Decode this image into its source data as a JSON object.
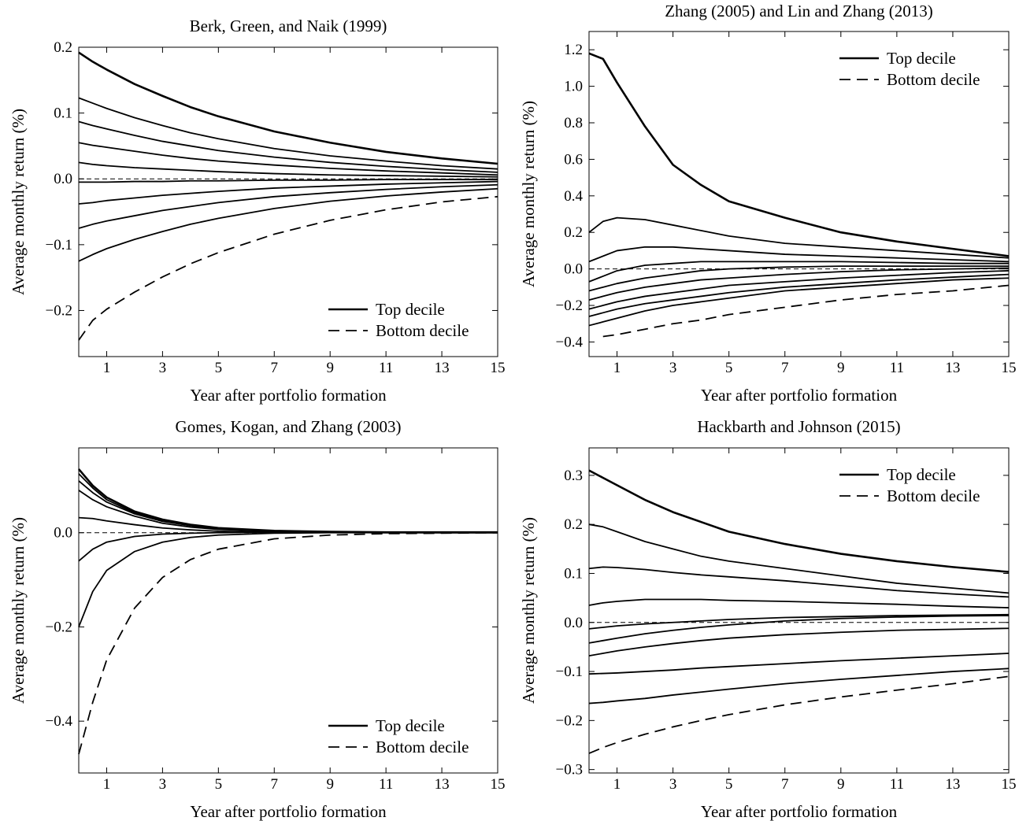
{
  "chart_data": [
    {
      "type": "line",
      "title": "Berk, Green, and Naik (1999)",
      "xlabel": "Year after portfolio formation",
      "ylabel": "Average monthly return (%)",
      "x": [
        0,
        0.5,
        1,
        2,
        3,
        4,
        5,
        7,
        9,
        11,
        13,
        15
      ],
      "xlim": [
        0,
        15
      ],
      "xticks": [
        1,
        3,
        5,
        7,
        9,
        11,
        13,
        15
      ],
      "ylim": [
        -0.27,
        0.2
      ],
      "yticks": [
        {
          "value": -0.2,
          "label": "−0.2"
        },
        {
          "value": -0.1,
          "label": "−0.1"
        },
        {
          "value": 0,
          "label": "0.0"
        },
        0.1,
        0.2
      ],
      "hline": 0,
      "legend": "lower right",
      "series": [
        {
          "name": "Top decile",
          "color": "#000",
          "linestyle": "solid",
          "linewidth": 2.6,
          "values": [
            0.192,
            0.178,
            0.166,
            0.144,
            0.126,
            0.109,
            0.095,
            0.072,
            0.055,
            0.041,
            0.031,
            0.023
          ]
        },
        {
          "color": "#000",
          "linestyle": "solid",
          "linewidth": 1.8,
          "values": [
            0.123,
            0.115,
            0.107,
            0.093,
            0.081,
            0.07,
            0.061,
            0.046,
            0.035,
            0.027,
            0.02,
            0.015
          ]
        },
        {
          "color": "#000",
          "linestyle": "solid",
          "linewidth": 1.8,
          "values": [
            0.087,
            0.081,
            0.076,
            0.066,
            0.057,
            0.05,
            0.043,
            0.033,
            0.025,
            0.019,
            0.014,
            0.01
          ]
        },
        {
          "color": "#000",
          "linestyle": "solid",
          "linewidth": 1.8,
          "values": [
            0.055,
            0.051,
            0.048,
            0.042,
            0.036,
            0.031,
            0.027,
            0.021,
            0.016,
            0.012,
            0.009,
            0.006
          ]
        },
        {
          "color": "#000",
          "linestyle": "solid",
          "linewidth": 1.8,
          "values": [
            0.025,
            0.022,
            0.02,
            0.017,
            0.015,
            0.013,
            0.011,
            0.008,
            0.006,
            0.005,
            0.004,
            0.003
          ]
        },
        {
          "color": "#000",
          "linestyle": "solid",
          "linewidth": 1.8,
          "values": [
            -0.005,
            -0.005,
            -0.005,
            -0.004,
            -0.004,
            -0.003,
            -0.003,
            -0.002,
            -0.002,
            -0.001,
            -0.001,
            -0.001
          ]
        },
        {
          "color": "#000",
          "linestyle": "solid",
          "linewidth": 1.8,
          "values": [
            -0.038,
            -0.036,
            -0.033,
            -0.029,
            -0.025,
            -0.022,
            -0.019,
            -0.014,
            -0.011,
            -0.008,
            -0.006,
            -0.004
          ]
        },
        {
          "color": "#000",
          "linestyle": "solid",
          "linewidth": 1.8,
          "values": [
            -0.075,
            -0.069,
            -0.064,
            -0.056,
            -0.048,
            -0.042,
            -0.036,
            -0.027,
            -0.021,
            -0.016,
            -0.012,
            -0.009
          ]
        },
        {
          "color": "#000",
          "linestyle": "solid",
          "linewidth": 1.8,
          "values": [
            -0.125,
            -0.115,
            -0.106,
            -0.092,
            -0.08,
            -0.069,
            -0.06,
            -0.045,
            -0.034,
            -0.026,
            -0.02,
            -0.015
          ]
        },
        {
          "name": "Bottom decile",
          "color": "#000",
          "linestyle": "dashed",
          "linewidth": 1.8,
          "values": [
            -0.245,
            -0.215,
            -0.198,
            -0.172,
            -0.149,
            -0.129,
            -0.112,
            -0.084,
            -0.063,
            -0.047,
            -0.035,
            -0.027
          ]
        }
      ]
    },
    {
      "type": "line",
      "title": "Zhang (2005) and Lin and Zhang (2013)",
      "xlabel": "Year after portfolio formation",
      "ylabel": "Average monthly return (%)",
      "x": [
        0,
        0.5,
        1,
        2,
        3,
        4,
        5,
        7,
        9,
        11,
        13,
        15
      ],
      "xlim": [
        0,
        15
      ],
      "xticks": [
        1,
        3,
        5,
        7,
        9,
        11,
        13,
        15
      ],
      "ylim": [
        -0.48,
        1.3
      ],
      "yticks": [
        {
          "value": -0.4,
          "label": "−0.4"
        },
        {
          "value": -0.2,
          "label": "−0.2"
        },
        {
          "value": 0,
          "label": "0.0"
        },
        0.2,
        0.4,
        0.6,
        0.8,
        {
          "value": 1,
          "label": "1.0"
        },
        1.2
      ],
      "hline": 0,
      "legend": "upper right",
      "series": [
        {
          "name": "Top decile",
          "color": "#000",
          "linestyle": "solid",
          "linewidth": 2.6,
          "values": [
            1.18,
            1.15,
            1.02,
            0.78,
            0.57,
            0.46,
            0.37,
            0.28,
            0.2,
            0.15,
            0.11,
            0.07
          ]
        },
        {
          "color": "#000",
          "linestyle": "solid",
          "linewidth": 1.8,
          "values": [
            0.2,
            0.26,
            0.28,
            0.27,
            0.24,
            0.21,
            0.18,
            0.14,
            0.12,
            0.1,
            0.08,
            0.06
          ]
        },
        {
          "color": "#000",
          "linestyle": "solid",
          "linewidth": 1.8,
          "values": [
            0.04,
            0.07,
            0.1,
            0.12,
            0.12,
            0.11,
            0.1,
            0.08,
            0.07,
            0.06,
            0.05,
            0.04
          ]
        },
        {
          "color": "#000",
          "linestyle": "solid",
          "linewidth": 1.8,
          "values": [
            -0.07,
            -0.04,
            -0.01,
            0.02,
            0.03,
            0.04,
            0.04,
            0.04,
            0.04,
            0.035,
            0.03,
            0.03
          ]
        },
        {
          "color": "#000",
          "linestyle": "solid",
          "linewidth": 1.8,
          "values": [
            -0.12,
            -0.1,
            -0.08,
            -0.05,
            -0.03,
            -0.01,
            0,
            0.01,
            0.015,
            0.015,
            0.015,
            0.015
          ]
        },
        {
          "color": "#000",
          "linestyle": "solid",
          "linewidth": 1.8,
          "values": [
            -0.17,
            -0.15,
            -0.13,
            -0.1,
            -0.08,
            -0.06,
            -0.05,
            -0.03,
            -0.015,
            -0.005,
            0,
            0.005
          ]
        },
        {
          "color": "#000",
          "linestyle": "solid",
          "linewidth": 1.8,
          "values": [
            -0.22,
            -0.2,
            -0.18,
            -0.15,
            -0.13,
            -0.11,
            -0.09,
            -0.07,
            -0.05,
            -0.035,
            -0.02,
            -0.01
          ]
        },
        {
          "color": "#000",
          "linestyle": "solid",
          "linewidth": 1.8,
          "values": [
            -0.26,
            -0.24,
            -0.22,
            -0.19,
            -0.17,
            -0.15,
            -0.13,
            -0.1,
            -0.08,
            -0.06,
            -0.045,
            -0.03
          ]
        },
        {
          "color": "#000",
          "linestyle": "solid",
          "linewidth": 1.8,
          "values": [
            -0.31,
            -0.29,
            -0.27,
            -0.23,
            -0.2,
            -0.18,
            -0.16,
            -0.12,
            -0.1,
            -0.08,
            -0.06,
            -0.05
          ]
        },
        {
          "name": "Bottom decile",
          "color": "#000",
          "linestyle": "dashed",
          "linewidth": 1.8,
          "values": [
            null,
            -0.37,
            -0.36,
            -0.33,
            -0.3,
            -0.28,
            -0.25,
            -0.21,
            -0.17,
            -0.14,
            -0.12,
            -0.09
          ]
        }
      ]
    },
    {
      "type": "line",
      "title": "Gomes, Kogan, and Zhang (2003)",
      "xlabel": "Year after portfolio formation",
      "ylabel": "Average monthly return (%)",
      "x": [
        0,
        0.5,
        1,
        2,
        3,
        4,
        5,
        7,
        9,
        11,
        13,
        15
      ],
      "xlim": [
        0,
        15
      ],
      "xticks": [
        1,
        3,
        5,
        7,
        9,
        11,
        13,
        15
      ],
      "ylim": [
        -0.51,
        0.18
      ],
      "yticks": [
        {
          "value": -0.4,
          "label": "−0.4"
        },
        {
          "value": -0.2,
          "label": "−0.2"
        },
        {
          "value": 0,
          "label": "0.0"
        }
      ],
      "hline": 0,
      "legend": "lower right",
      "series": [
        {
          "name": "Top decile",
          "color": "#000",
          "linestyle": "solid",
          "linewidth": 2.6,
          "values": [
            0.135,
            0.1,
            0.075,
            0.045,
            0.028,
            0.017,
            0.01,
            0.004,
            0.002,
            0.001,
            0.001,
            0.001
          ]
        },
        {
          "color": "#000",
          "linestyle": "solid",
          "linewidth": 1.8,
          "values": [
            0.125,
            0.095,
            0.07,
            0.042,
            0.026,
            0.016,
            0.009,
            0.004,
            0.002,
            0.001,
            0.001,
            0.001
          ]
        },
        {
          "color": "#000",
          "linestyle": "solid",
          "linewidth": 1.8,
          "values": [
            0.11,
            0.085,
            0.065,
            0.04,
            0.024,
            0.015,
            0.008,
            0.003,
            0.002,
            0.001,
            0.001,
            0.001
          ]
        },
        {
          "color": "#000",
          "linestyle": "solid",
          "linewidth": 1.8,
          "values": [
            0.09,
            0.07,
            0.055,
            0.035,
            0.02,
            0.012,
            0.007,
            0.003,
            0.001,
            0.001,
            0,
            0
          ]
        },
        {
          "color": "#000",
          "linestyle": "solid",
          "linewidth": 1.8,
          "values": [
            0.032,
            0.03,
            0.025,
            0.017,
            0.01,
            0.006,
            0.003,
            0.001,
            0.001,
            0,
            0,
            0
          ]
        },
        {
          "color": "#000",
          "linestyle": "solid",
          "linewidth": 1.8,
          "values": [
            -0.06,
            -0.035,
            -0.02,
            -0.008,
            -0.003,
            -0.001,
            0,
            0.001,
            0.001,
            0,
            0,
            0
          ]
        },
        {
          "color": "#000",
          "linestyle": "solid",
          "linewidth": 1.8,
          "values": [
            -0.2,
            -0.125,
            -0.08,
            -0.04,
            -0.02,
            -0.01,
            -0.005,
            -0.001,
            0,
            0,
            0,
            0
          ]
        },
        {
          "name": "Bottom decile",
          "color": "#000",
          "linestyle": "dashed",
          "linewidth": 1.8,
          "values": [
            -0.47,
            -0.36,
            -0.27,
            -0.16,
            -0.095,
            -0.057,
            -0.035,
            -0.013,
            -0.005,
            -0.002,
            -0.001,
            0
          ]
        }
      ]
    },
    {
      "type": "line",
      "title": "Hackbarth and Johnson (2015)",
      "xlabel": "Year after portfolio formation",
      "ylabel": "Average monthly return (%)",
      "x": [
        0,
        0.5,
        1,
        2,
        3,
        4,
        5,
        7,
        9,
        11,
        13,
        15
      ],
      "xlim": [
        0,
        15
      ],
      "xticks": [
        1,
        3,
        5,
        7,
        9,
        11,
        13,
        15
      ],
      "ylim": [
        -0.307,
        0.356
      ],
      "yticks": [
        {
          "value": -0.3,
          "label": "−0.3"
        },
        {
          "value": -0.2,
          "label": "−0.2"
        },
        {
          "value": -0.1,
          "label": "−0.1"
        },
        {
          "value": 0,
          "label": "0.0"
        },
        0.1,
        0.2,
        0.3
      ],
      "hline": 0,
      "legend": "upper right",
      "series": [
        {
          "name": "Top decile",
          "color": "#000",
          "linestyle": "solid",
          "linewidth": 2.6,
          "values": [
            0.31,
            0.295,
            0.28,
            0.25,
            0.225,
            0.205,
            0.185,
            0.16,
            0.14,
            0.125,
            0.113,
            0.103
          ]
        },
        {
          "color": "#000",
          "linestyle": "solid",
          "linewidth": 1.8,
          "values": [
            0.2,
            0.195,
            0.185,
            0.165,
            0.15,
            0.135,
            0.125,
            0.11,
            0.095,
            0.08,
            0.07,
            0.06
          ]
        },
        {
          "color": "#000",
          "linestyle": "solid",
          "linewidth": 1.8,
          "values": [
            0.11,
            0.113,
            0.112,
            0.108,
            0.102,
            0.097,
            0.093,
            0.085,
            0.075,
            0.065,
            0.058,
            0.052
          ]
        },
        {
          "color": "#000",
          "linestyle": "solid",
          "linewidth": 1.8,
          "values": [
            0.035,
            0.04,
            0.043,
            0.047,
            0.047,
            0.047,
            0.045,
            0.043,
            0.04,
            0.037,
            0.033,
            0.03
          ]
        },
        {
          "color": "#000",
          "linestyle": "solid",
          "linewidth": 1.8,
          "values": [
            -0.013,
            -0.01,
            -0.007,
            -0.003,
            0,
            0.003,
            0.006,
            0.01,
            0.012,
            0.014,
            0.015,
            0.016
          ]
        },
        {
          "color": "#000",
          "linestyle": "solid",
          "linewidth": 1.8,
          "values": [
            -0.042,
            -0.037,
            -0.032,
            -0.023,
            -0.016,
            -0.01,
            -0.005,
            0.003,
            0.008,
            0.011,
            0.013,
            0.014
          ]
        },
        {
          "color": "#000",
          "linestyle": "solid",
          "linewidth": 1.8,
          "values": [
            -0.068,
            -0.063,
            -0.058,
            -0.05,
            -0.043,
            -0.037,
            -0.032,
            -0.025,
            -0.02,
            -0.016,
            -0.014,
            -0.012
          ]
        },
        {
          "color": "#000",
          "linestyle": "solid",
          "linewidth": 1.8,
          "values": [
            -0.105,
            -0.104,
            -0.103,
            -0.1,
            -0.097,
            -0.093,
            -0.09,
            -0.084,
            -0.078,
            -0.073,
            -0.068,
            -0.063
          ]
        },
        {
          "color": "#000",
          "linestyle": "solid",
          "linewidth": 1.8,
          "values": [
            -0.165,
            -0.163,
            -0.16,
            -0.155,
            -0.148,
            -0.142,
            -0.136,
            -0.125,
            -0.116,
            -0.108,
            -0.1,
            -0.094
          ]
        },
        {
          "name": "Bottom decile",
          "color": "#000",
          "linestyle": "dashed",
          "linewidth": 1.8,
          "values": [
            -0.267,
            -0.255,
            -0.245,
            -0.228,
            -0.213,
            -0.2,
            -0.188,
            -0.168,
            -0.152,
            -0.138,
            -0.125,
            -0.11
          ]
        }
      ]
    }
  ]
}
